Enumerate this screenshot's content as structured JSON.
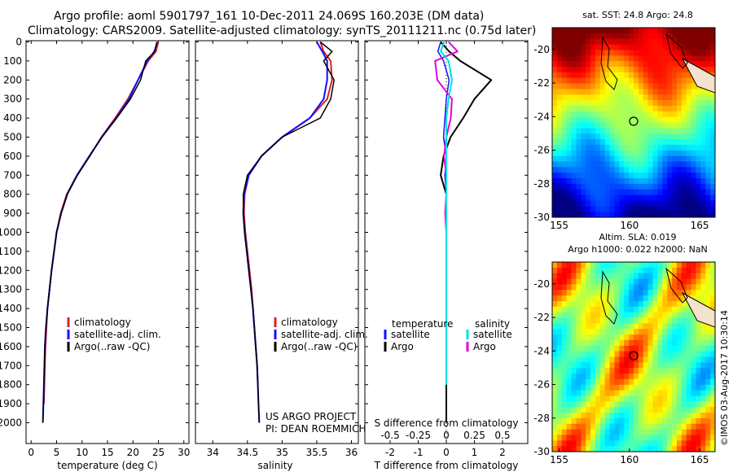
{
  "header": {
    "line1": "Argo profile: aoml 5901797_161 10-Dec-2011 24.069S 160.203E (DM data)",
    "line2": "Climatology: CARS2009. Satellite-adjusted climatology: synTS_20111211.nc (0.75d later)"
  },
  "panel_temperature": {
    "xlabel": "temperature (deg C)",
    "x_ticks": [
      "0",
      "5",
      "10",
      "15",
      "20",
      "25",
      "30"
    ],
    "y_ticks": [
      "0",
      "100",
      "200",
      "300",
      "400",
      "500",
      "600",
      "700",
      "800",
      "900",
      "1000",
      "1100",
      "1200",
      "1300",
      "1400",
      "1500",
      "1600",
      "1700",
      "1800",
      "1900",
      "2000"
    ],
    "legend": [
      "climatology",
      "satellite-adj. clim.",
      "Argo(..raw -QC)"
    ]
  },
  "panel_salinity": {
    "xlabel": "salinity",
    "x_ticks": [
      "34",
      "34.5",
      "35",
      "35.5",
      "36"
    ],
    "legend": [
      "climatology",
      "satellite-adj. clim.",
      "Argo(..raw -QC)"
    ],
    "note1": "US ARGO PROJECT",
    "note2": "PI: DEAN ROEMMICH"
  },
  "panel_difference": {
    "s_label": "S difference from climatology",
    "s_ticks": [
      "-0.5",
      "-0.25",
      "0",
      "0.25",
      "0.5"
    ],
    "xlabel": "T difference from climatology",
    "t_ticks": [
      "-2",
      "-1",
      "0",
      "1",
      "2"
    ],
    "legend_t_title": "temperature",
    "legend_s_title": "salinity",
    "legend_t": [
      "satellite",
      "Argo"
    ],
    "legend_s": [
      "satellite",
      "Argo"
    ]
  },
  "map_sst": {
    "title": "sat. SST: 24.8  Argo: 24.8",
    "lat_ticks": [
      "-20",
      "-22",
      "-24",
      "-26",
      "-28",
      "-30"
    ],
    "lon_ticks": [
      "155",
      "160",
      "165"
    ]
  },
  "map_sla": {
    "title1": "Altim. SLA: 0.019",
    "title2": "Argo h1000: 0.022  h2000: NaN",
    "lat_ticks": [
      "-20",
      "-22",
      "-24",
      "-26",
      "-28",
      "-30"
    ],
    "lon_ticks": [
      "155",
      "160",
      "165"
    ]
  },
  "credit": "©IMOS 03-Aug-2017 10:30:14",
  "colors": {
    "climatology": "#e02020",
    "satellite": "#1010ff",
    "argo": "#000000",
    "sal_satellite": "#00e0e0",
    "sal_argo": "#e000e0"
  },
  "chart_data": [
    {
      "type": "line",
      "xlabel": "temperature (deg C)",
      "ylabel": "",
      "xlim": [
        -1,
        31
      ],
      "ylim": [
        2050,
        0
      ],
      "series": [
        {
          "name": "climatology",
          "x": [
            25.0,
            24.5,
            23.0,
            21.0,
            19.0,
            16.5,
            13.8,
            11.5,
            9.0,
            7.0,
            5.8,
            5.0,
            4.5,
            4.0,
            3.6,
            3.2,
            3.0,
            2.8,
            2.7,
            2.6,
            2.5
          ],
          "y": [
            0,
            50,
            100,
            200,
            300,
            400,
            500,
            600,
            700,
            800,
            900,
            1000,
            1100,
            1200,
            1300,
            1400,
            1500,
            1600,
            1700,
            1800,
            1900
          ]
        },
        {
          "name": "satellite-adj. clim.",
          "x": [
            24.8,
            24.2,
            22.8,
            21.0,
            19.2,
            16.7,
            13.9,
            11.4,
            9.0,
            7.1,
            5.9,
            5.0,
            4.5,
            4.0,
            3.6,
            3.2,
            2.9,
            2.7,
            2.6,
            2.5,
            2.4,
            2.3
          ],
          "y": [
            0,
            50,
            100,
            200,
            300,
            400,
            500,
            600,
            700,
            800,
            900,
            1000,
            1100,
            1200,
            1300,
            1400,
            1500,
            1600,
            1700,
            1800,
            1900,
            2000
          ]
        },
        {
          "name": "Argo(..raw -QC)",
          "x": [
            24.7,
            24.3,
            22.5,
            21.5,
            19.5,
            16.8,
            13.9,
            11.5,
            9.1,
            7.1,
            5.9,
            5.0,
            4.5,
            4.0,
            3.6,
            3.2,
            2.9,
            2.7,
            2.6,
            2.5,
            2.4,
            2.3
          ],
          "y": [
            0,
            50,
            100,
            200,
            300,
            400,
            500,
            600,
            700,
            800,
            900,
            1000,
            1100,
            1200,
            1300,
            1400,
            1500,
            1600,
            1700,
            1800,
            1900,
            2000
          ]
        }
      ]
    },
    {
      "type": "line",
      "xlabel": "salinity",
      "ylabel": "",
      "xlim": [
        33.75,
        36.1
      ],
      "ylim": [
        2050,
        0
      ],
      "series": [
        {
          "name": "climatology",
          "x": [
            35.55,
            35.6,
            35.7,
            35.72,
            35.65,
            35.4,
            35.0,
            34.7,
            34.52,
            34.46,
            34.45,
            34.47,
            34.5,
            34.53,
            34.56,
            34.58,
            34.6,
            34.62,
            34.64,
            34.65
          ],
          "y": [
            0,
            50,
            100,
            200,
            300,
            400,
            500,
            600,
            700,
            800,
            900,
            1000,
            1100,
            1200,
            1300,
            1400,
            1500,
            1600,
            1700,
            1800
          ]
        },
        {
          "name": "satellite-adj. clim.",
          "x": [
            35.5,
            35.58,
            35.65,
            35.65,
            35.6,
            35.4,
            35.0,
            34.7,
            34.52,
            34.45,
            34.44,
            34.46,
            34.49,
            34.52,
            34.55,
            34.58,
            34.6,
            34.62,
            34.64,
            34.65,
            34.66,
            34.67
          ],
          "y": [
            0,
            50,
            100,
            200,
            300,
            400,
            500,
            600,
            700,
            800,
            900,
            1000,
            1100,
            1200,
            1300,
            1400,
            1500,
            1600,
            1700,
            1800,
            1900,
            2000
          ]
        },
        {
          "name": "Argo(..raw -QC)",
          "x": [
            35.55,
            35.72,
            35.6,
            35.75,
            35.7,
            35.55,
            35.0,
            34.7,
            34.5,
            34.44,
            34.44,
            34.46,
            34.49,
            34.52,
            34.55,
            34.58,
            34.6,
            34.62,
            34.64,
            34.65,
            34.66,
            34.67
          ],
          "y": [
            0,
            50,
            100,
            200,
            300,
            400,
            500,
            600,
            700,
            800,
            900,
            1000,
            1100,
            1200,
            1300,
            1400,
            1500,
            1600,
            1700,
            1800,
            1900,
            2000
          ]
        }
      ]
    },
    {
      "type": "line",
      "xlabel": "T difference from climatology",
      "ylabel": "",
      "xlim": [
        -2.9,
        2.9
      ],
      "ylim": [
        2050,
        0
      ],
      "series": [
        {
          "name": "temperature satellite",
          "x": [
            -0.2,
            -0.3,
            -0.1,
            0.1,
            0.0,
            -0.05,
            -0.1,
            0.0,
            -0.05,
            0.0,
            0.0,
            0.0,
            0.0,
            0.0,
            0.0,
            0.0,
            0.0,
            0.0,
            0.0,
            0.0,
            0.0
          ],
          "y": [
            0,
            50,
            100,
            200,
            300,
            400,
            500,
            600,
            700,
            800,
            900,
            1000,
            1100,
            1200,
            1300,
            1400,
            1500,
            1600,
            1700,
            1800,
            2000
          ]
        },
        {
          "name": "temperature Argo",
          "x": [
            -0.2,
            0.1,
            0.5,
            1.6,
            1.0,
            0.6,
            0.15,
            -0.1,
            -0.2,
            0.0,
            0.0,
            0.0,
            0.0,
            0.0,
            0.0,
            0.0,
            0.0,
            0.0,
            0.0,
            0.0,
            0.0
          ],
          "y": [
            0,
            50,
            100,
            200,
            300,
            400,
            500,
            600,
            700,
            800,
            900,
            1000,
            1100,
            1200,
            1300,
            1400,
            1500,
            1600,
            1700,
            1800,
            2000
          ]
        },
        {
          "name": "salinity satellite",
          "x": [
            -0.02,
            -0.05,
            0.02,
            0.05,
            0.02,
            0.0,
            0.0,
            0.0,
            0.0,
            0.0,
            0.0,
            0.0,
            0.0,
            0.0,
            0.0,
            0.0,
            0.0,
            0.0,
            0.0
          ],
          "y": [
            0,
            50,
            100,
            200,
            300,
            400,
            500,
            600,
            700,
            800,
            900,
            1000,
            1100,
            1200,
            1300,
            1400,
            1500,
            1600,
            1800
          ]
        },
        {
          "name": "salinity Argo",
          "x": [
            0.02,
            0.1,
            -0.1,
            -0.08,
            0.05,
            0.04,
            0.0,
            -0.02,
            0.0,
            0.0,
            -0.01,
            0.0,
            0.0,
            0.0,
            0.0,
            0.0,
            0.0,
            0.0,
            0.0
          ],
          "y": [
            0,
            50,
            100,
            200,
            300,
            400,
            500,
            600,
            700,
            800,
            900,
            1000,
            1100,
            1200,
            1300,
            1400,
            1500,
            1600,
            1800
          ]
        }
      ]
    }
  ]
}
